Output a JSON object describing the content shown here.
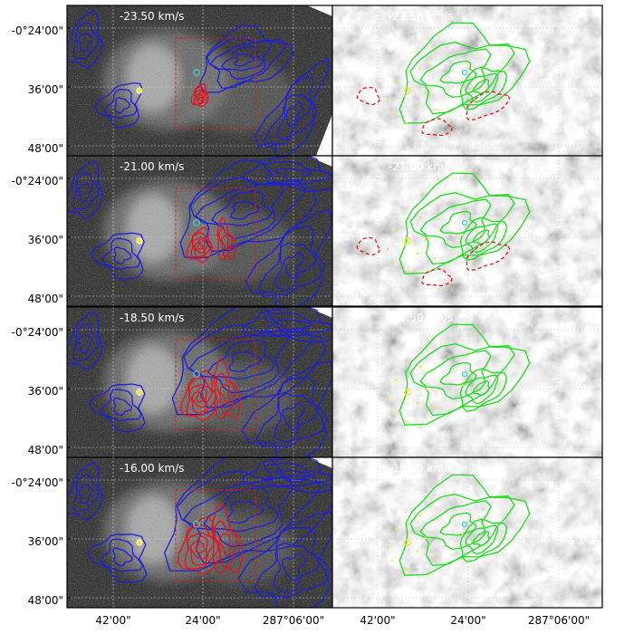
{
  "chart_data": {
    "type": "channel-map",
    "title": "",
    "xlabel": "",
    "ylabel": "",
    "rows": 4,
    "columns": 2,
    "panels": [
      {
        "row": 0,
        "velocity_label": "-23.50 km/s"
      },
      {
        "row": 1,
        "velocity_label": "-21.00 km/s"
      },
      {
        "row": 2,
        "velocity_label": "-18.50 km/s"
      },
      {
        "row": 3,
        "velocity_label": "-16.00 km/s"
      }
    ],
    "y_tick_labels": [
      "-0°24'00\"",
      "36'00\"",
      "48'00\""
    ],
    "x_tick_labels_left": [
      "42'00\"",
      "24'00\"",
      "287°06'00\""
    ],
    "x_tick_labels_right": [
      "42'00\"",
      "24'00\"",
      "287°06'00\""
    ],
    "contour_colors": {
      "left_low": "#1f1fd8",
      "left_high": "#e0161b",
      "right": "#1fdc1f",
      "right_negative": "#e0161b",
      "markers": "#f5e23a",
      "cyan_marker": "#3fd6d6",
      "box": "#d42020",
      "grid": "#cfcfcf"
    },
    "grid": true
  }
}
